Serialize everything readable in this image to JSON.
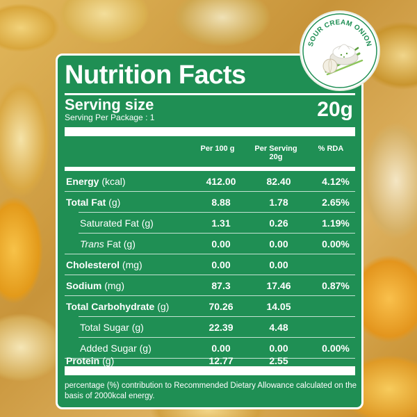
{
  "badge": {
    "text": "SOUR CREAM ONION"
  },
  "panel": {
    "title": "Nutrition Facts",
    "serving_label": "Serving size",
    "serving_per_package": "Serving Per Package : 1",
    "serving_value": "20g",
    "columns": {
      "per100": "Per 100 g",
      "perServing_line1": "Per Serving",
      "perServing_line2": "20g",
      "rda": "% RDA"
    },
    "rows": [
      {
        "label": "Energy",
        "unit": " (kcal)",
        "per100": "412.00",
        "perServing": "82.40",
        "rda": "4.12%"
      },
      {
        "label": "Total Fat",
        "unit": " (g)",
        "per100": "8.88",
        "perServing": "1.78",
        "rda": "2.65%"
      },
      {
        "label": "Saturated Fat",
        "unit": " (g)",
        "per100": "1.31",
        "perServing": "0.26",
        "rda": "1.19%"
      },
      {
        "label_italic": "Trans",
        "label": " Fat",
        "unit": " (g)",
        "per100": "0.00",
        "perServing": "0.00",
        "rda": "0.00%"
      },
      {
        "label": "Cholesterol",
        "unit": " (mg)",
        "per100": "0.00",
        "perServing": "0.00",
        "rda": ""
      },
      {
        "label": "Sodium",
        "unit": " (mg)",
        "per100": "87.3",
        "perServing": "17.46",
        "rda": "0.87%"
      },
      {
        "label": "Total Carbohydrate",
        "unit": " (g)",
        "per100": "70.26",
        "perServing": "14.05",
        "rda": ""
      },
      {
        "label": "Total Sugar",
        "unit": " (g)",
        "per100": "22.39",
        "perServing": "4.48",
        "rda": ""
      },
      {
        "label": "Added Sugar",
        "unit": " (g)",
        "per100": "0.00",
        "perServing": "0.00",
        "rda": "0.00%"
      },
      {
        "label": "Protein",
        "unit": " (g)",
        "per100": "12.77",
        "perServing": "2.55",
        "rda": ""
      }
    ],
    "footnote": "percentage (%) contribution to Recommended Dietary Allowance calculated on the basis of 2000kcal energy."
  },
  "colors": {
    "panel_green": "#1f8f54",
    "text_white": "#ffffff"
  }
}
